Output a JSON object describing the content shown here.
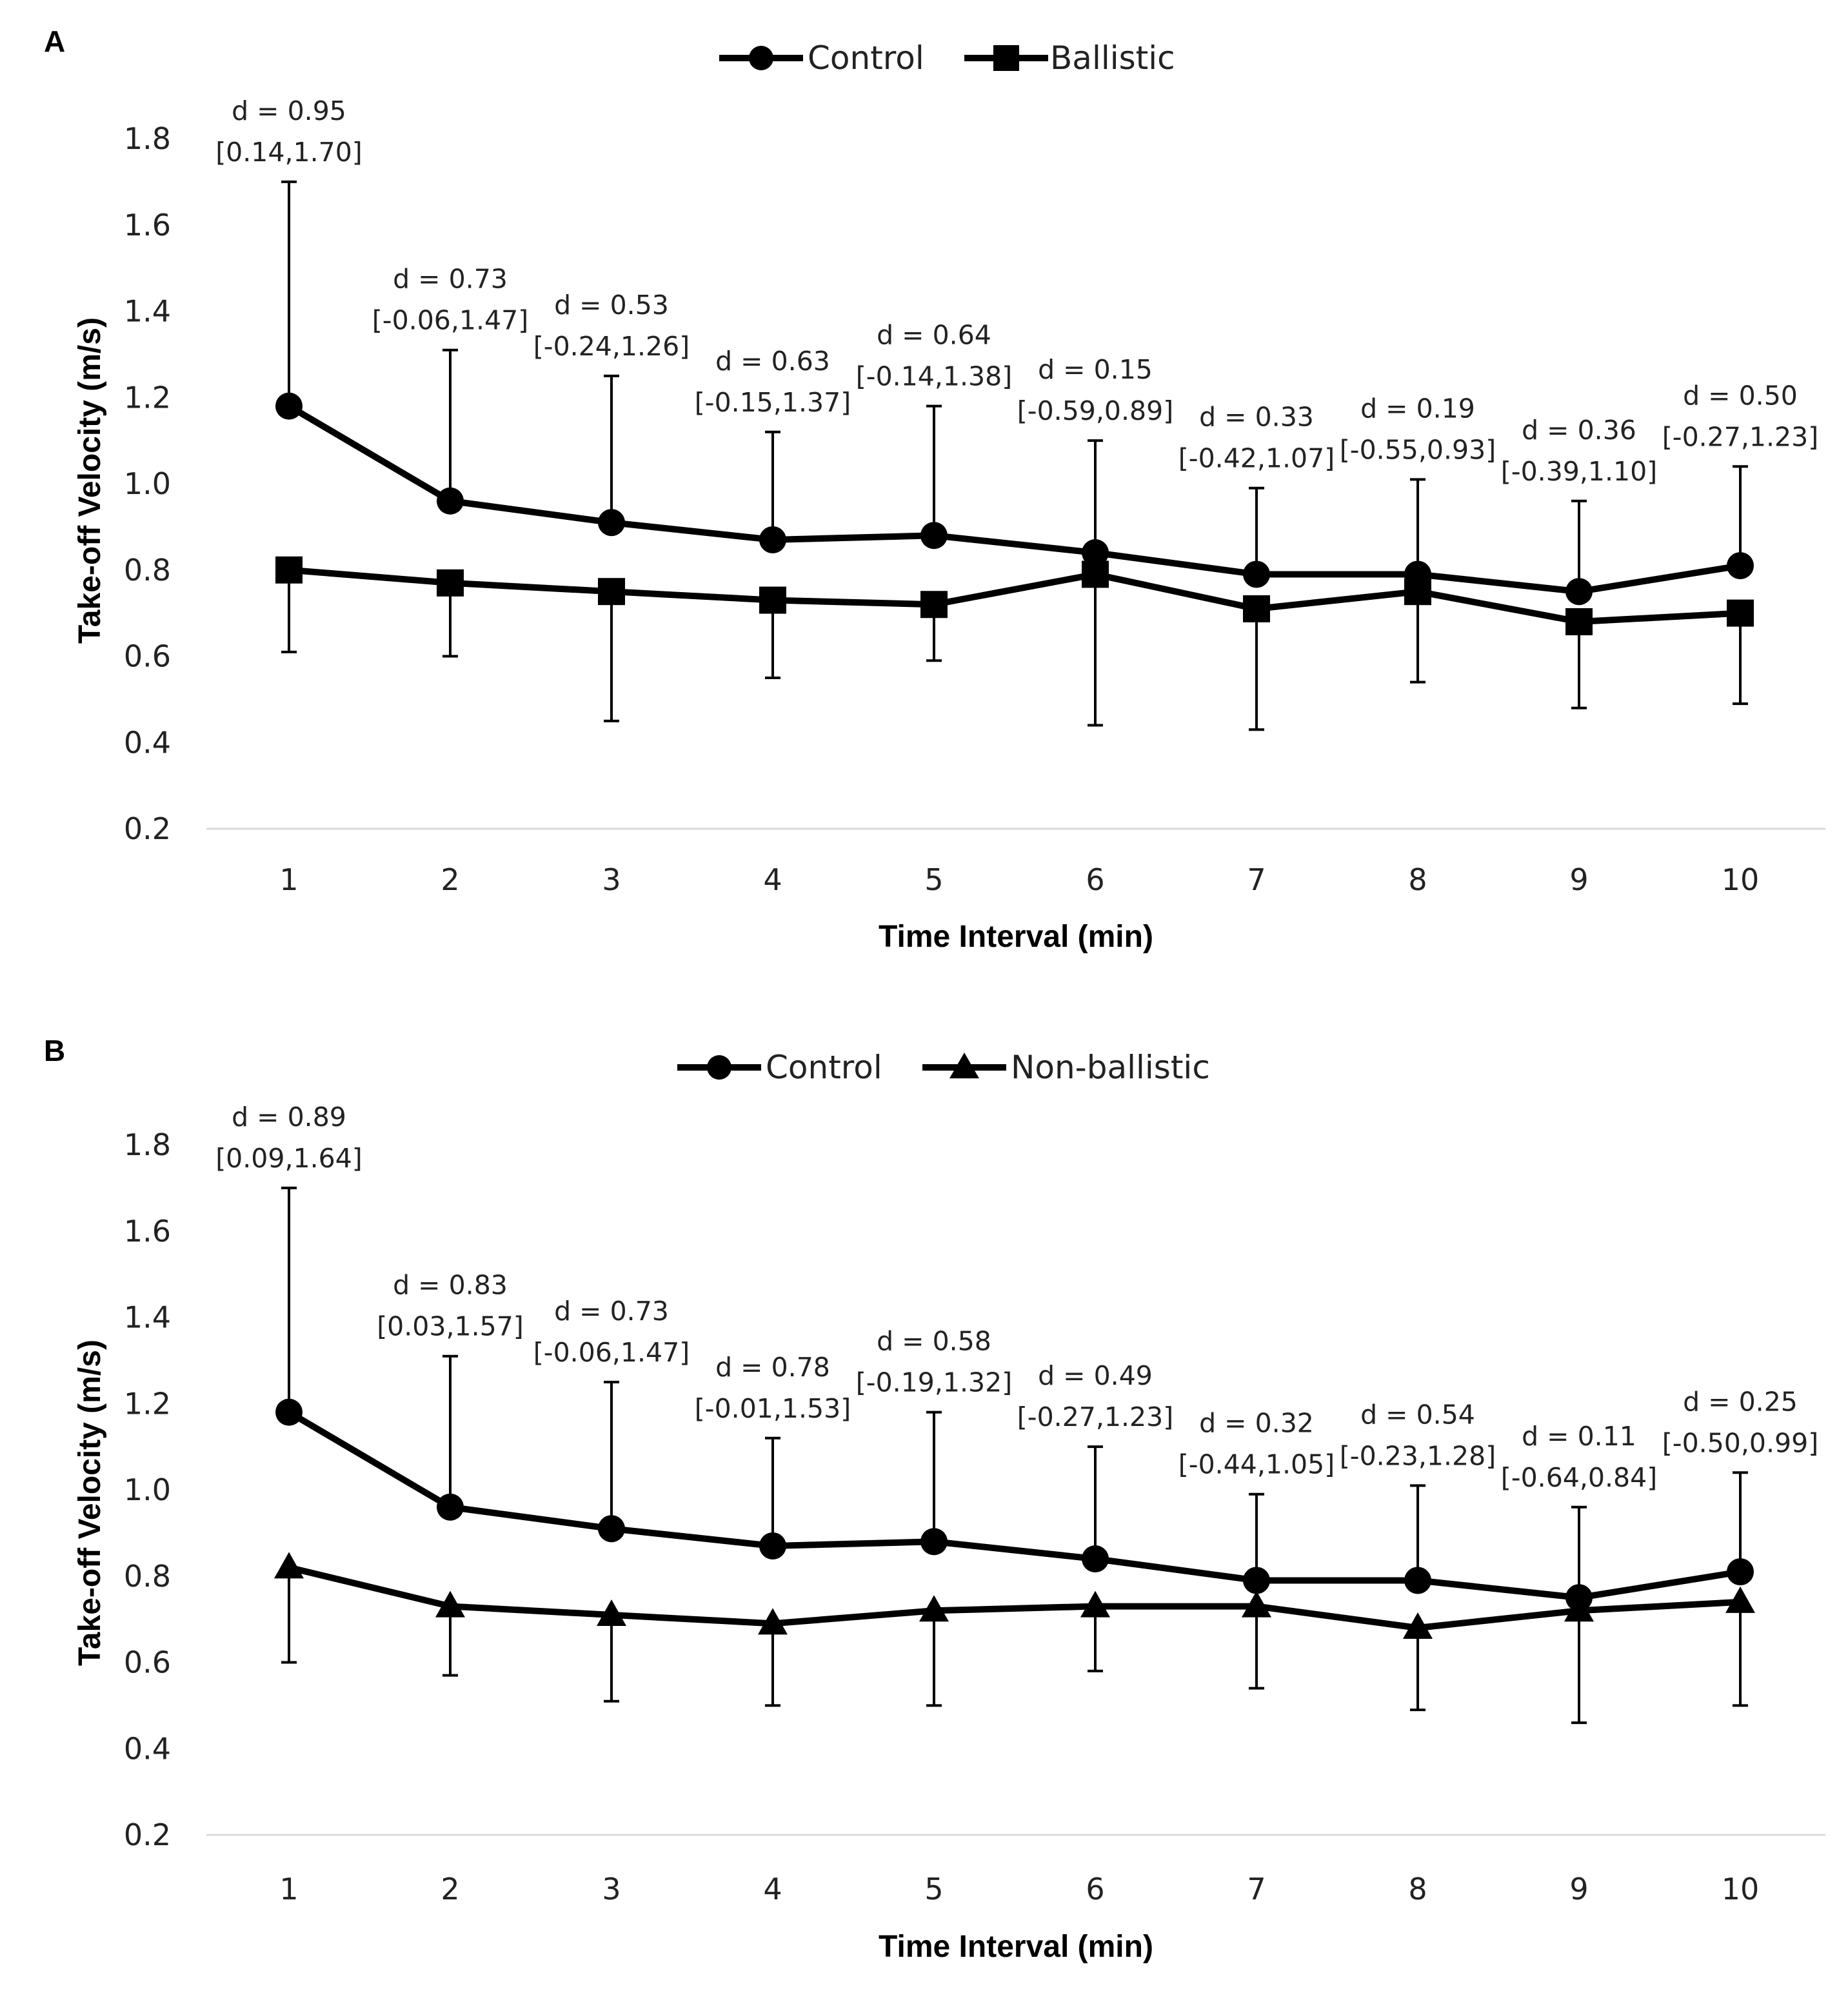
{
  "chart_data": [
    {
      "type": "line",
      "panel_label": "A",
      "xlabel": "Time Interval (min)",
      "ylabel": "Take-off Velocity (m/s)",
      "ylim": [
        0.2,
        1.8
      ],
      "yticks": [
        "0.2",
        "0.4",
        "0.6",
        "0.8",
        "1.0",
        "1.2",
        "1.4",
        "1.6",
        "1.8"
      ],
      "x": [
        "1",
        "2",
        "3",
        "4",
        "5",
        "6",
        "7",
        "8",
        "9",
        "10"
      ],
      "legend_position": "top-center",
      "series": [
        {
          "name": "Control",
          "marker": "circle",
          "values": [
            1.18,
            0.96,
            0.91,
            0.87,
            0.88,
            0.84,
            0.79,
            0.79,
            0.75,
            0.81
          ],
          "error_upper": [
            1.7,
            1.31,
            1.25,
            1.12,
            1.18,
            1.1,
            0.99,
            1.01,
            0.96,
            1.04
          ],
          "error_lower": [
            null,
            null,
            null,
            null,
            null,
            null,
            null,
            null,
            null,
            null
          ]
        },
        {
          "name": "Ballistic",
          "marker": "square",
          "values": [
            0.8,
            0.77,
            0.75,
            0.73,
            0.72,
            0.79,
            0.71,
            0.75,
            0.68,
            0.7
          ],
          "error_upper": [
            null,
            null,
            null,
            null,
            null,
            null,
            null,
            null,
            null,
            null
          ],
          "error_lower": [
            0.61,
            0.6,
            0.45,
            0.55,
            0.59,
            0.44,
            0.43,
            0.54,
            0.48,
            0.49
          ]
        }
      ],
      "annotations": [
        {
          "d": "d = 0.95",
          "ci": "[0.14,1.70]"
        },
        {
          "d": "d = 0.73",
          "ci": "[-0.06,1.47]"
        },
        {
          "d": "d = 0.53",
          "ci": "[-0.24,1.26]"
        },
        {
          "d": "d = 0.63",
          "ci": "[-0.15,1.37]"
        },
        {
          "d": "d = 0.64",
          "ci": "[-0.14,1.38]"
        },
        {
          "d": "d = 0.15",
          "ci": "[-0.59,0.89]"
        },
        {
          "d": "d = 0.33",
          "ci": "[-0.42,1.07]"
        },
        {
          "d": "d = 0.19",
          "ci": "[-0.55,0.93]"
        },
        {
          "d": "d = 0.36",
          "ci": "[-0.39,1.10]"
        },
        {
          "d": "d = 0.50",
          "ci": "[-0.27,1.23]"
        }
      ]
    },
    {
      "type": "line",
      "panel_label": "B",
      "xlabel": "Time Interval (min)",
      "ylabel": "Take-off Velocity (m/s)",
      "ylim": [
        0.2,
        1.8
      ],
      "yticks": [
        "0.2",
        "0.4",
        "0.6",
        "0.8",
        "1.0",
        "1.2",
        "1.4",
        "1.6",
        "1.8"
      ],
      "x": [
        "1",
        "2",
        "3",
        "4",
        "5",
        "6",
        "7",
        "8",
        "9",
        "10"
      ],
      "legend_position": "top-center",
      "series": [
        {
          "name": "Control",
          "marker": "circle",
          "values": [
            1.18,
            0.96,
            0.91,
            0.87,
            0.88,
            0.84,
            0.79,
            0.79,
            0.75,
            0.81
          ],
          "error_upper": [
            1.7,
            1.31,
            1.25,
            1.12,
            1.18,
            1.1,
            0.99,
            1.01,
            0.96,
            1.04
          ],
          "error_lower": [
            null,
            null,
            null,
            null,
            null,
            null,
            null,
            null,
            null,
            null
          ]
        },
        {
          "name": "Non-ballistic",
          "marker": "triangle",
          "values": [
            0.82,
            0.73,
            0.71,
            0.69,
            0.72,
            0.73,
            0.73,
            0.68,
            0.72,
            0.74
          ],
          "error_upper": [
            null,
            null,
            null,
            null,
            null,
            null,
            null,
            null,
            null,
            null
          ],
          "error_lower": [
            0.6,
            0.57,
            0.51,
            0.5,
            0.5,
            0.58,
            0.54,
            0.49,
            0.46,
            0.5
          ]
        }
      ],
      "annotations": [
        {
          "d": "d = 0.89",
          "ci": "[0.09,1.64]"
        },
        {
          "d": "d = 0.83",
          "ci": "[0.03,1.57]"
        },
        {
          "d": "d = 0.73",
          "ci": "[-0.06,1.47]"
        },
        {
          "d": "d = 0.78",
          "ci": "[-0.01,1.53]"
        },
        {
          "d": "d = 0.58",
          "ci": "[-0.19,1.32]"
        },
        {
          "d": "d = 0.49",
          "ci": "[-0.27,1.23]"
        },
        {
          "d": "d = 0.32",
          "ci": "[-0.44,1.05]"
        },
        {
          "d": "d = 0.54",
          "ci": "[-0.23,1.28]"
        },
        {
          "d": "d = 0.11",
          "ci": "[-0.64,0.84]"
        },
        {
          "d": "d = 0.25",
          "ci": "[-0.50,0.99]"
        }
      ]
    }
  ]
}
